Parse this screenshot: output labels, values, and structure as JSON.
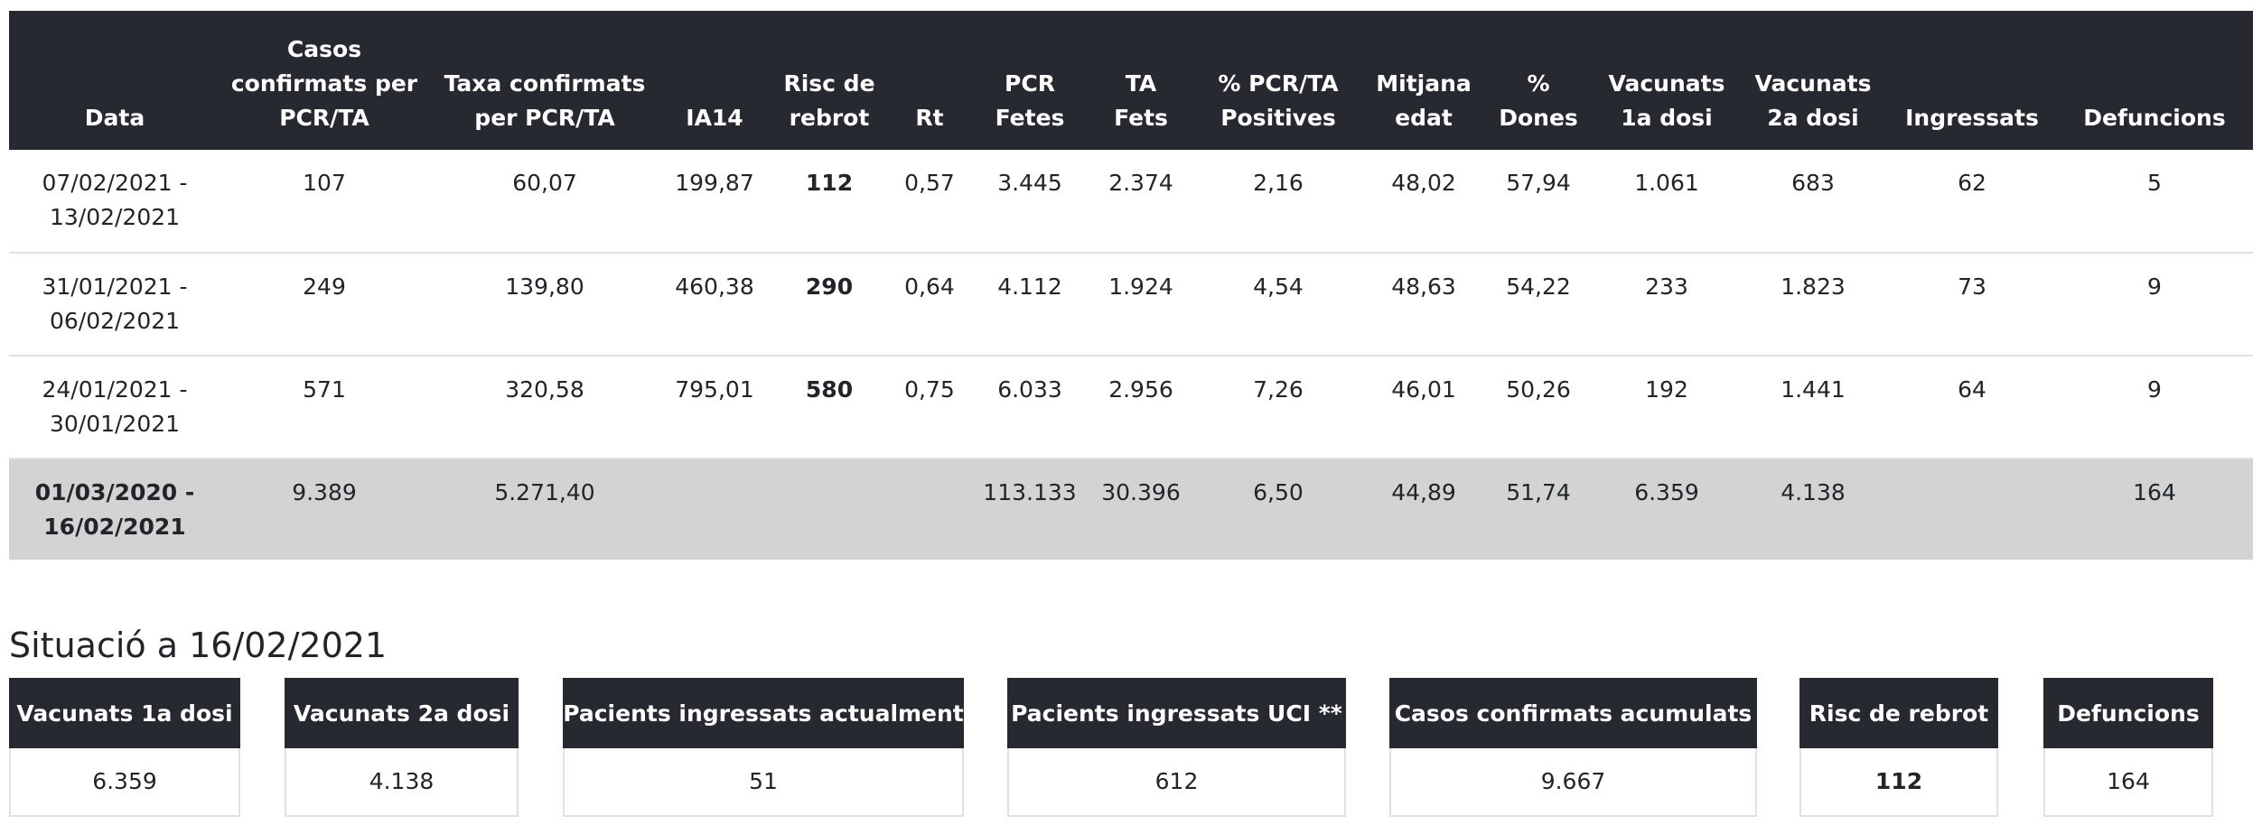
{
  "table": {
    "headers": [
      "Data",
      "Casos confirmats per PCR/TA",
      "Taxa confirmats per PCR/TA",
      "IA14",
      "Risc de rebrot",
      "Rt",
      "PCR Fetes",
      "TA Fets",
      "% PCR/TA Positives",
      "Mitjana edat",
      "% Dones",
      "Vacunats 1a dosi",
      "Vacunats 2a dosi",
      "Ingressats",
      "Defuncions"
    ],
    "rows": [
      [
        "07/02/2021 - 13/02/2021",
        "107",
        "60,07",
        "199,87",
        "112",
        "0,57",
        "3.445",
        "2.374",
        "2,16",
        "48,02",
        "57,94",
        "1.061",
        "683",
        "62",
        "5"
      ],
      [
        "31/01/2021 - 06/02/2021",
        "249",
        "139,80",
        "460,38",
        "290",
        "0,64",
        "4.112",
        "1.924",
        "4,54",
        "48,63",
        "54,22",
        "233",
        "1.823",
        "73",
        "9"
      ],
      [
        "24/01/2021 - 30/01/2021",
        "571",
        "320,58",
        "795,01",
        "580",
        "0,75",
        "6.033",
        "2.956",
        "7,26",
        "46,01",
        "50,26",
        "192",
        "1.441",
        "64",
        "9"
      ]
    ],
    "total": [
      "01/03/2020 - 16/02/2021",
      "9.389",
      "5.271,40",
      "",
      "",
      "",
      "113.133",
      "30.396",
      "6,50",
      "44,89",
      "51,74",
      "6.359",
      "4.138",
      "",
      "164"
    ]
  },
  "situation": {
    "title": "Situació a 16/02/2021",
    "cards": [
      {
        "label": "Vacunats 1a dosi",
        "value": "6.359"
      },
      {
        "label": "Vacunats 2a dosi",
        "value": "4.138"
      },
      {
        "label": "Pacients ingressats actualment",
        "value": "51"
      },
      {
        "label": "Pacients ingressats UCI **",
        "value": "612"
      },
      {
        "label": "Casos confirmats acumulats",
        "value": "9.667"
      },
      {
        "label": "Risc de rebrot",
        "value": "112"
      },
      {
        "label": "Defuncions",
        "value": "164"
      }
    ]
  },
  "colors": {
    "header_bg": "#262a30",
    "risk_red": "#e8161b",
    "total_row_bg": "#d3d3d3"
  }
}
